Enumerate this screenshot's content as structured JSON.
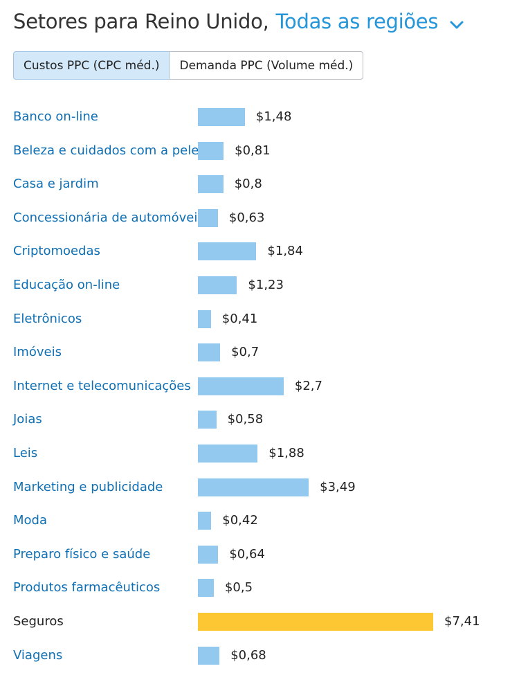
{
  "header": {
    "title": "Setores para Reino Unido,",
    "region": "Todas as regiões",
    "region_icon": "chevron-down-icon",
    "accent_color": "#2596d9"
  },
  "tabs": [
    {
      "label": "Custos PPC (CPC méd.)",
      "active": true
    },
    {
      "label": "Demanda PPC (Volume méd.)",
      "active": false
    }
  ],
  "chart_data": {
    "type": "bar",
    "orientation": "horizontal",
    "categories": [
      "Banco on-line",
      "Beleza e cuidados com a pele",
      "Casa e jardim",
      "Concessionária de automóveis",
      "Criptomoedas",
      "Educação on-line",
      "Eletrônicos",
      "Imóveis",
      "Internet e telecomunicações",
      "Joias",
      "Leis",
      "Marketing e publicidade",
      "Moda",
      "Preparo físico e saúde",
      "Produtos farmacêuticos",
      "Seguros",
      "Viagens"
    ],
    "values": [
      1.48,
      0.81,
      0.8,
      0.63,
      1.84,
      1.23,
      0.41,
      0.7,
      2.7,
      0.58,
      1.88,
      3.49,
      0.42,
      0.64,
      0.5,
      7.41,
      0.68
    ],
    "value_labels": [
      "$1,48",
      "$0,81",
      "$0,8",
      "$0,63",
      "$1,84",
      "$1,23",
      "$0,41",
      "$0,7",
      "$2,7",
      "$0,58",
      "$1,88",
      "$3,49",
      "$0,42",
      "$0,64",
      "$0,5",
      "$7,41",
      "$0,68"
    ],
    "highlighted_category": "Seguros",
    "bar_color": "#93c8ef",
    "highlight_color": "#fdc633",
    "label_color": "#0f6fb3",
    "highlight_label_color": "#222222"
  }
}
